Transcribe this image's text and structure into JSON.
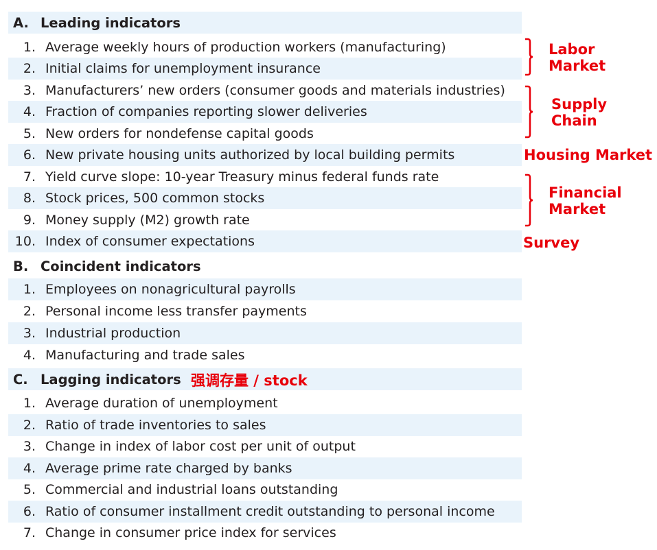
{
  "sections": [
    {
      "letter": "A.",
      "title": "Leading indicators",
      "annotation": "",
      "items": [
        {
          "num": "1.",
          "text": "Average weekly hours of production workers (manufacturing)"
        },
        {
          "num": "2.",
          "text": "Initial claims for unemployment insurance"
        },
        {
          "num": "3.",
          "text": "Manufacturers’ new orders (consumer goods and materials industries)"
        },
        {
          "num": "4.",
          "text": "Fraction of companies reporting slower deliveries"
        },
        {
          "num": "5.",
          "text": "New orders for nondefense capital goods"
        },
        {
          "num": "6.",
          "text": "New private housing units authorized by local building permits"
        },
        {
          "num": "7.",
          "text": "Yield curve slope: 10-year Treasury minus federal funds rate"
        },
        {
          "num": "8.",
          "text": "Stock prices, 500 common stocks"
        },
        {
          "num": "9.",
          "text": "Money supply (M2) growth rate"
        },
        {
          "num": "10.",
          "text": "Index of consumer expectations"
        }
      ]
    },
    {
      "letter": "B.",
      "title": "Coincident indicators",
      "items": [
        {
          "num": "1.",
          "text": "Employees on nonagricultural payrolls"
        },
        {
          "num": "2.",
          "text": "Personal income less transfer payments"
        },
        {
          "num": "3.",
          "text": "Industrial production"
        },
        {
          "num": "4.",
          "text": "Manufacturing and trade sales"
        }
      ]
    },
    {
      "letter": "C.",
      "title": "Lagging indicators",
      "annotation": "强调存量 / stock",
      "items": [
        {
          "num": "1.",
          "text": "Average duration of unemployment"
        },
        {
          "num": "2.",
          "text": "Ratio of trade inventories to sales"
        },
        {
          "num": "3.",
          "text": "Change in index of labor cost per unit of output"
        },
        {
          "num": "4.",
          "text": "Average prime rate charged by banks"
        },
        {
          "num": "5.",
          "text": "Commercial and industrial loans outstanding"
        },
        {
          "num": "6.",
          "text": "Ratio of consumer installment credit outstanding to personal income"
        },
        {
          "num": "7.",
          "text": "Change in consumer price index for services"
        }
      ]
    }
  ],
  "annotations": {
    "labor": {
      "line1": "Labor",
      "line2": "Market"
    },
    "supply": {
      "line1": "Supply",
      "line2": "Chain"
    },
    "housing": "Housing Market",
    "financial": {
      "line1": "Financial",
      "line2": "Market"
    },
    "survey": "Survey"
  },
  "colors": {
    "annotation": "#e8000b",
    "row_shade": "#e9f3fb",
    "text": "#231f20"
  }
}
